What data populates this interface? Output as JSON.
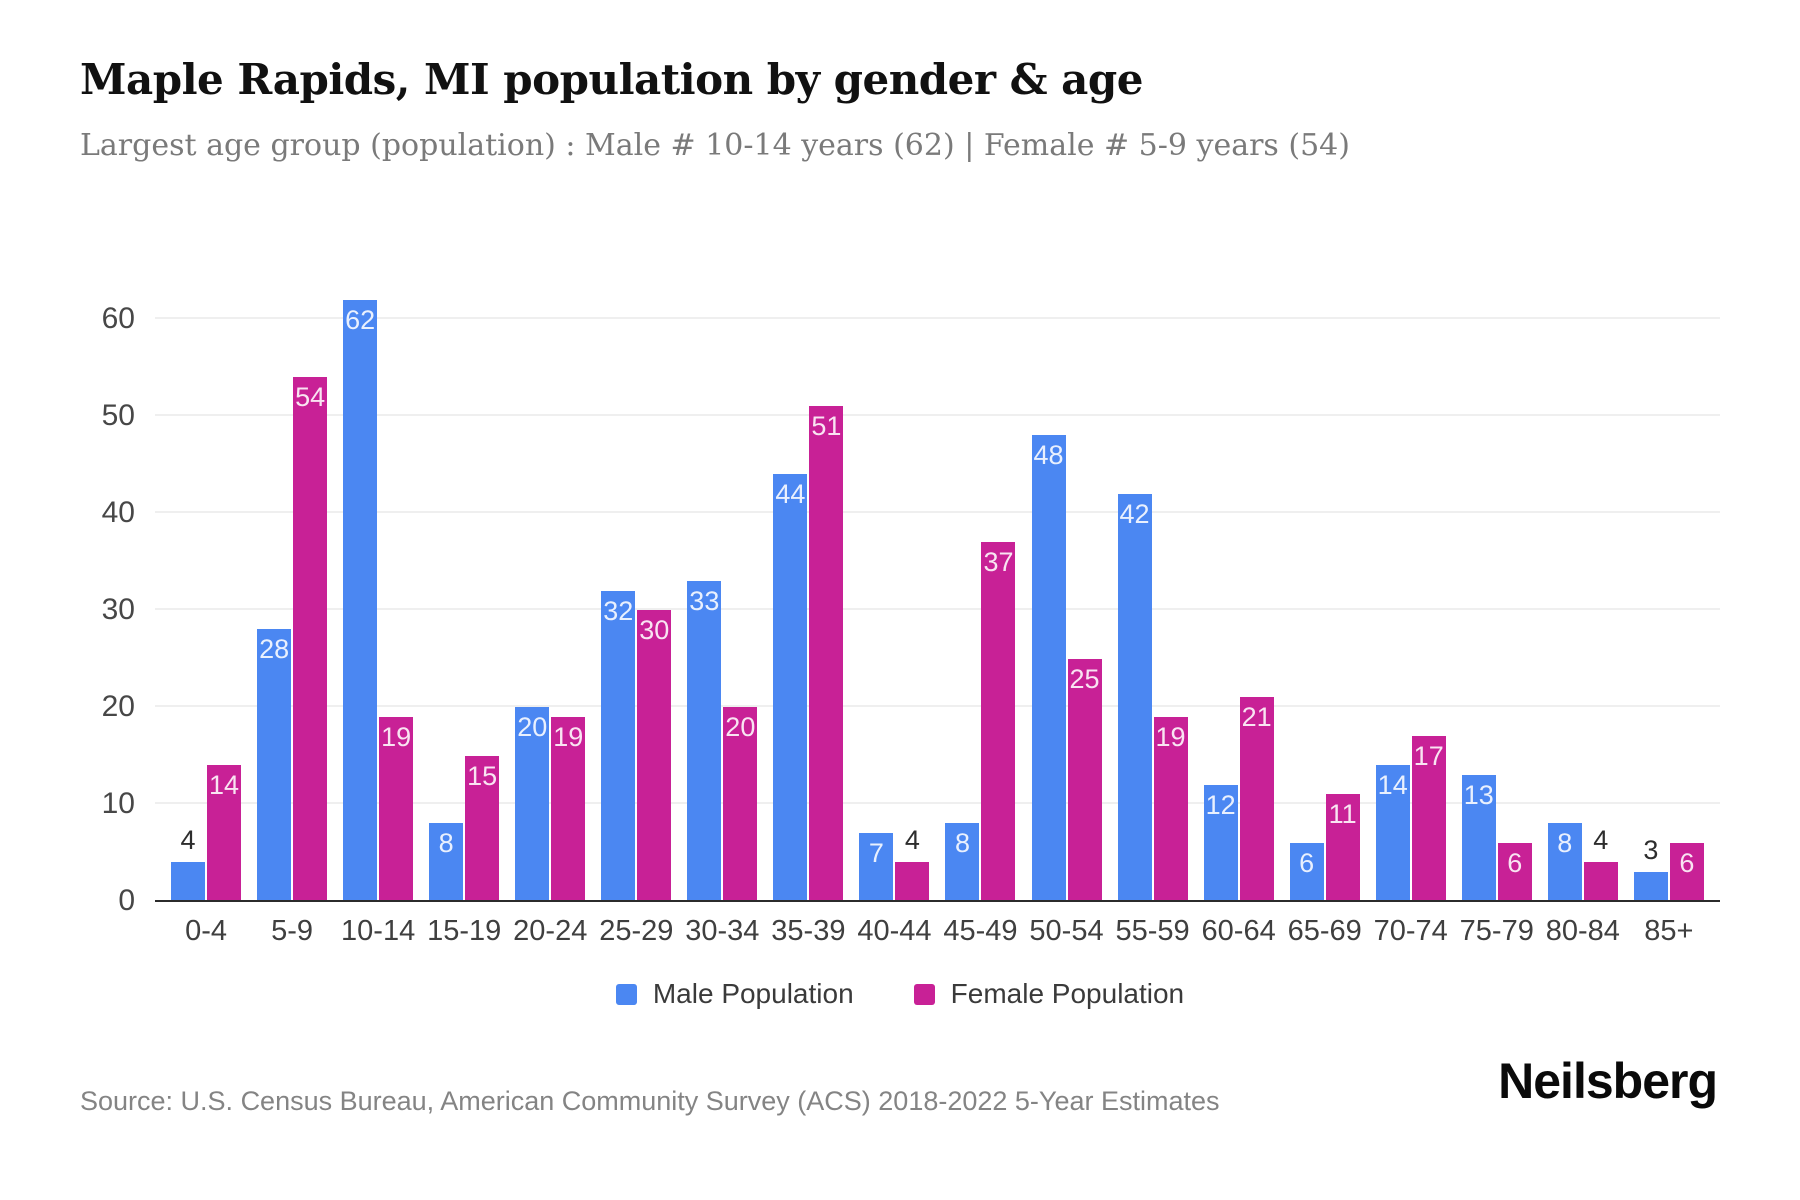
{
  "header": {
    "title": "Maple Rapids, MI population by gender & age",
    "subtitle": "Largest age group (population) : Male # 10-14 years (62) | Female # 5-9 years (54)"
  },
  "chart_data": {
    "type": "bar",
    "title": "Maple Rapids, MI population by gender & age",
    "xlabel": "",
    "ylabel": "",
    "categories": [
      "0-4",
      "5-9",
      "10-14",
      "15-19",
      "20-24",
      "25-29",
      "30-34",
      "35-39",
      "40-44",
      "45-49",
      "50-54",
      "55-59",
      "60-64",
      "65-69",
      "70-74",
      "75-79",
      "80-84",
      "85+"
    ],
    "series": [
      {
        "name": "Male Population",
        "color": "#4b87f2",
        "values": [
          4,
          28,
          62,
          8,
          20,
          32,
          33,
          44,
          7,
          8,
          48,
          42,
          12,
          6,
          14,
          13,
          8,
          3
        ]
      },
      {
        "name": "Female Population",
        "color": "#c82196",
        "values": [
          14,
          54,
          19,
          15,
          19,
          30,
          20,
          51,
          4,
          37,
          25,
          19,
          21,
          11,
          17,
          6,
          4,
          6
        ]
      }
    ],
    "ylim": [
      0,
      65
    ],
    "yticks": [
      0,
      10,
      20,
      30,
      40,
      50,
      60
    ],
    "grid": true,
    "legend_position": "bottom",
    "value_labels": true
  },
  "style": {
    "male_color": "#4b87f2",
    "female_color": "#c82196",
    "grid_color": "#efefef",
    "axis_line_color": "#2b2b2b",
    "label_inside_color": "rgba(255,255,255,0.88)",
    "label_outside_color": "#2d2d2d"
  },
  "footer": {
    "source": "Source: U.S. Census Bureau, American Community Survey (ACS) 2018-2022 5-Year Estimates",
    "brand": "Neilsberg"
  }
}
